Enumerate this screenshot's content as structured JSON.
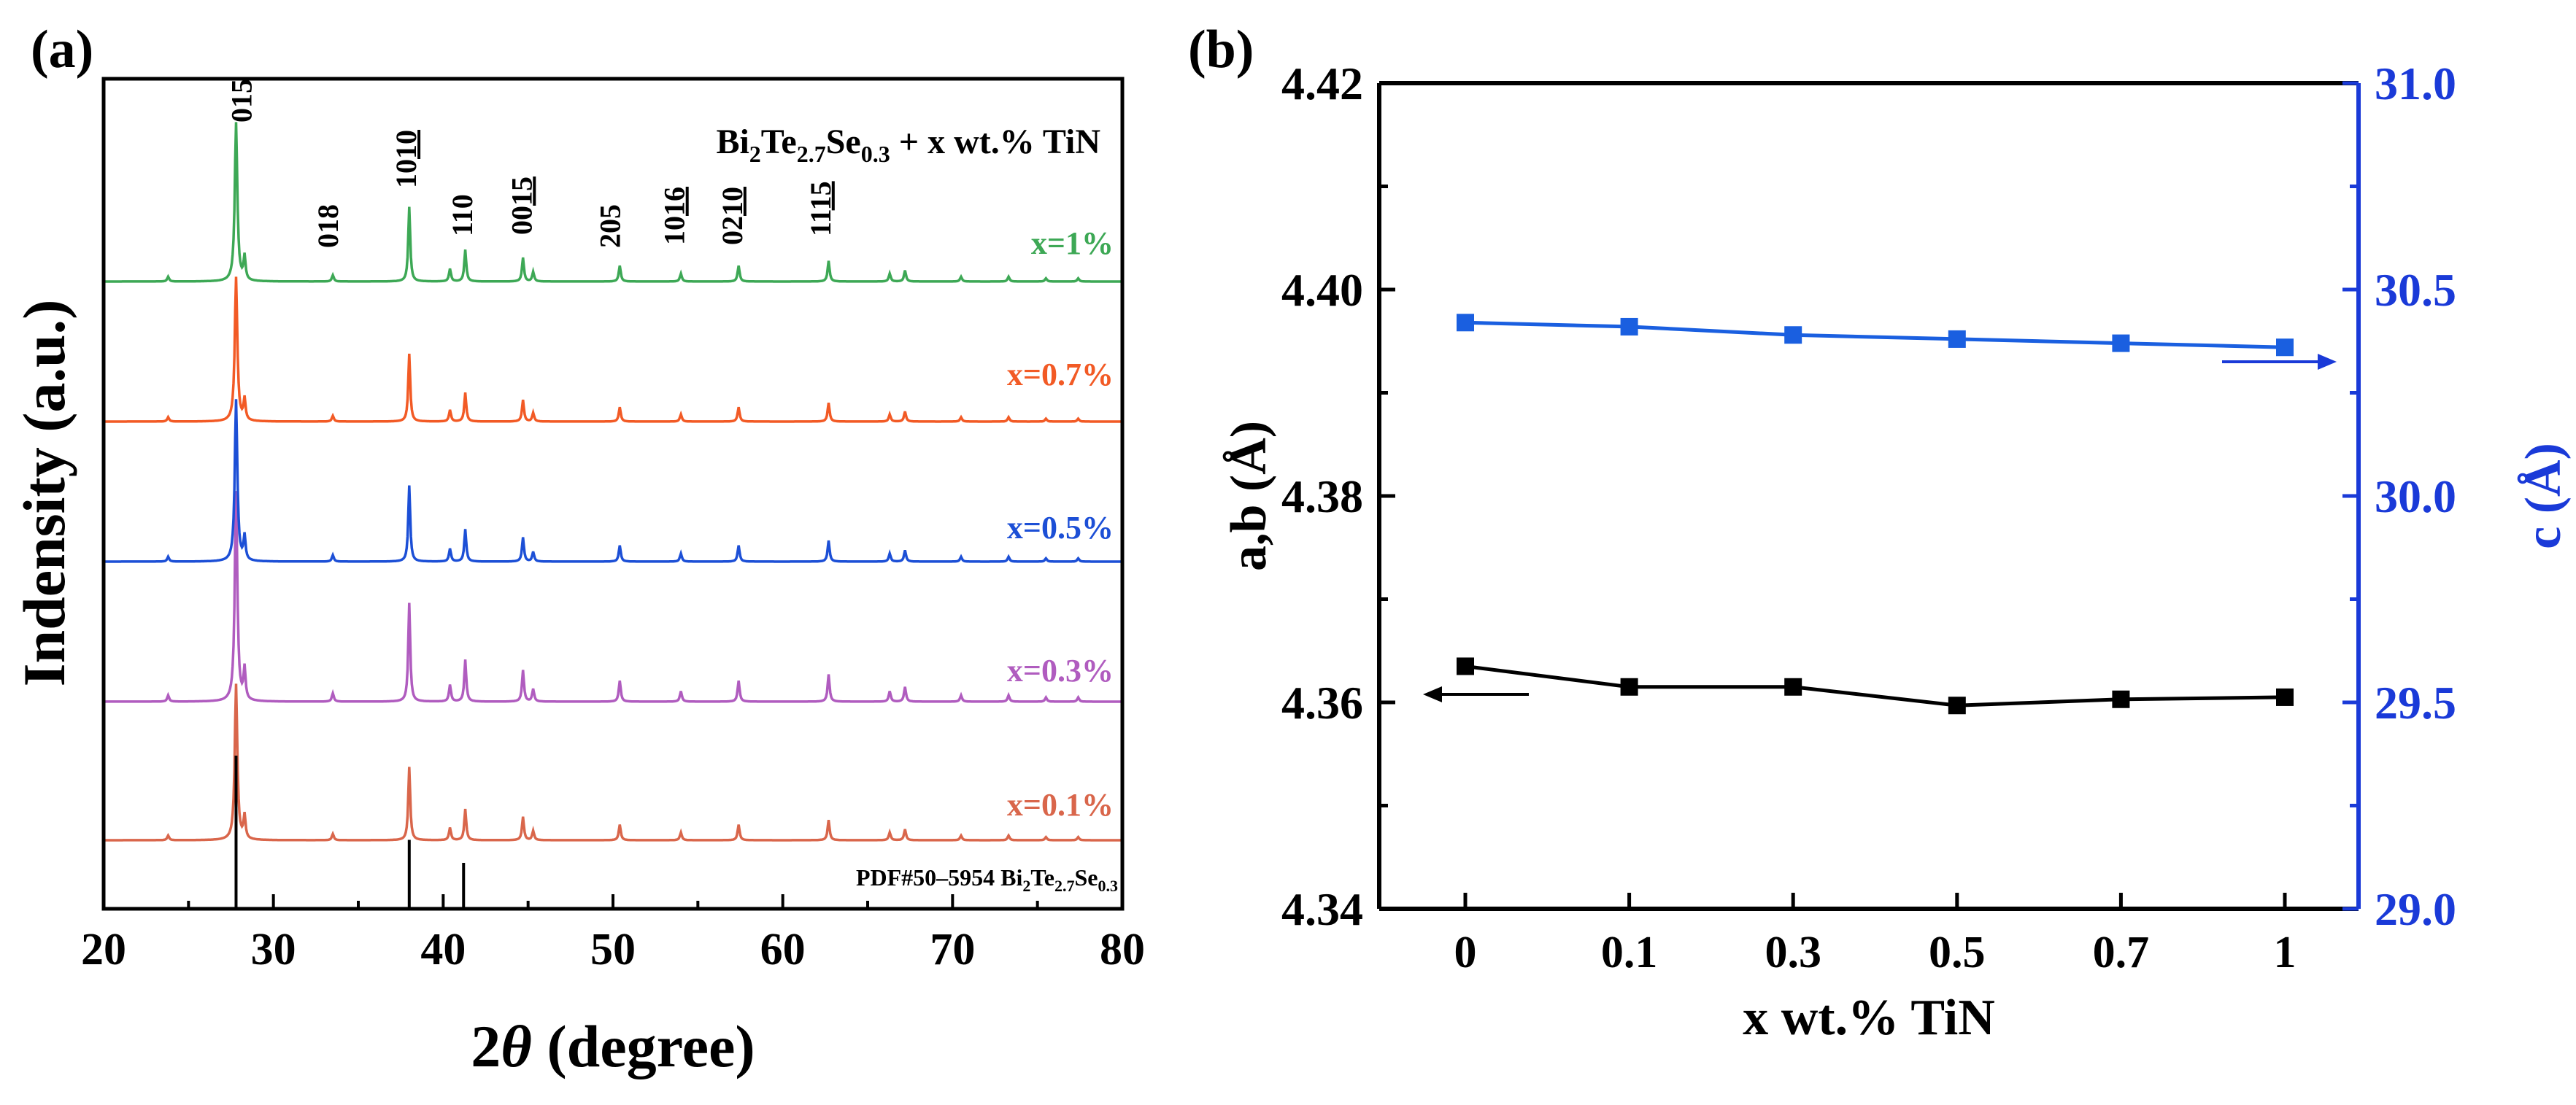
{
  "chart_data": [
    {
      "panel_label": "(a)",
      "type": "line",
      "xlabel_prefix": "2",
      "xlabel_theta": "θ",
      "xlabel_suffix": " (degree)",
      "ylabel": "Indensity (a.u.)",
      "xlim": [
        20,
        80
      ],
      "xticks": [
        20,
        30,
        40,
        50,
        60,
        70,
        80
      ],
      "xtick_labels": [
        "20",
        "30",
        "40",
        "50",
        "60",
        "70",
        "80"
      ],
      "title_parts": {
        "a": "Bi",
        "b": "2",
        "c": "Te",
        "d": "2.7",
        "e": "Se",
        "f": "0.3",
        "g": " + x wt.% TiN"
      },
      "reference_parts": {
        "a": "PDF#50–5954  Bi",
        "b": "2",
        "c": "Te",
        "d": "2.7",
        "e": "Se",
        "f": "0.3"
      },
      "reference_lines": [
        {
          "x": 27.8,
          "height": 1.0
        },
        {
          "x": 38.0,
          "height": 0.45
        },
        {
          "x": 41.2,
          "height": 0.3
        }
      ],
      "peak_labels": [
        {
          "x": 28.7,
          "main": "015",
          "under": ""
        },
        {
          "x": 33.8,
          "main": "018",
          "under": ""
        },
        {
          "x": 38.4,
          "main": "10",
          "under": "10"
        },
        {
          "x": 41.7,
          "main": "110",
          "under": ""
        },
        {
          "x": 45.2,
          "main": "00",
          "under": "15"
        },
        {
          "x": 50.4,
          "main": "205",
          "under": ""
        },
        {
          "x": 54.2,
          "main": "10",
          "under": "16"
        },
        {
          "x": 57.6,
          "main": "02",
          "under": "10"
        },
        {
          "x": 62.8,
          "main": "11",
          "under": "15"
        }
      ],
      "peaks": [
        {
          "x": 23.8,
          "h": 0.03
        },
        {
          "x": 27.8,
          "h": 1.0
        },
        {
          "x": 28.3,
          "h": 0.15
        },
        {
          "x": 33.5,
          "h": 0.04
        },
        {
          "x": 38.0,
          "h": 0.47
        },
        {
          "x": 40.4,
          "h": 0.08
        },
        {
          "x": 41.3,
          "h": 0.2
        },
        {
          "x": 44.7,
          "h": 0.15
        },
        {
          "x": 45.3,
          "h": 0.06
        },
        {
          "x": 50.4,
          "h": 0.1
        },
        {
          "x": 54.0,
          "h": 0.05
        },
        {
          "x": 57.4,
          "h": 0.1
        },
        {
          "x": 62.7,
          "h": 0.13
        },
        {
          "x": 66.3,
          "h": 0.05
        },
        {
          "x": 67.2,
          "h": 0.07
        },
        {
          "x": 70.5,
          "h": 0.03
        },
        {
          "x": 73.3,
          "h": 0.03
        },
        {
          "x": 75.5,
          "h": 0.02
        },
        {
          "x": 77.4,
          "h": 0.02
        }
      ],
      "series": [
        {
          "name": "x=0.1%",
          "color": "#d9664b"
        },
        {
          "name": "x=0.3%",
          "color": "#b05cbf"
        },
        {
          "name": "x=0.5%",
          "color": "#1c4fd6"
        },
        {
          "name": "x=0.7%",
          "color": "#f25a25"
        },
        {
          "name": "x=1%",
          "color": "#3da855"
        }
      ]
    },
    {
      "panel_label": "(b)",
      "type": "line",
      "xlabel": "x wt.% TiN",
      "ylabel": "a,b (Å)",
      "ylabel_right": "c (Å)",
      "categories": [
        "0",
        "0.1",
        "0.3",
        "0.5",
        "0.7",
        "1"
      ],
      "ylim": [
        4.34,
        4.42
      ],
      "yticks": [
        "4.34",
        "4.36",
        "4.38",
        "4.40",
        "4.42"
      ],
      "ylim_right": [
        29.0,
        31.0
      ],
      "yticks_right": [
        "29.0",
        "29.5",
        "30.0",
        "30.5",
        "31.0"
      ],
      "right_axis_color": "#1a3ad8",
      "series": [
        {
          "axis": "left",
          "color": "#000000",
          "values": [
            4.3635,
            4.3615,
            4.3615,
            4.3597,
            4.3603,
            4.3605
          ]
        },
        {
          "axis": "right",
          "color": "#1a5fe0",
          "values": [
            30.42,
            30.41,
            30.39,
            30.38,
            30.37,
            30.36
          ]
        }
      ]
    }
  ]
}
